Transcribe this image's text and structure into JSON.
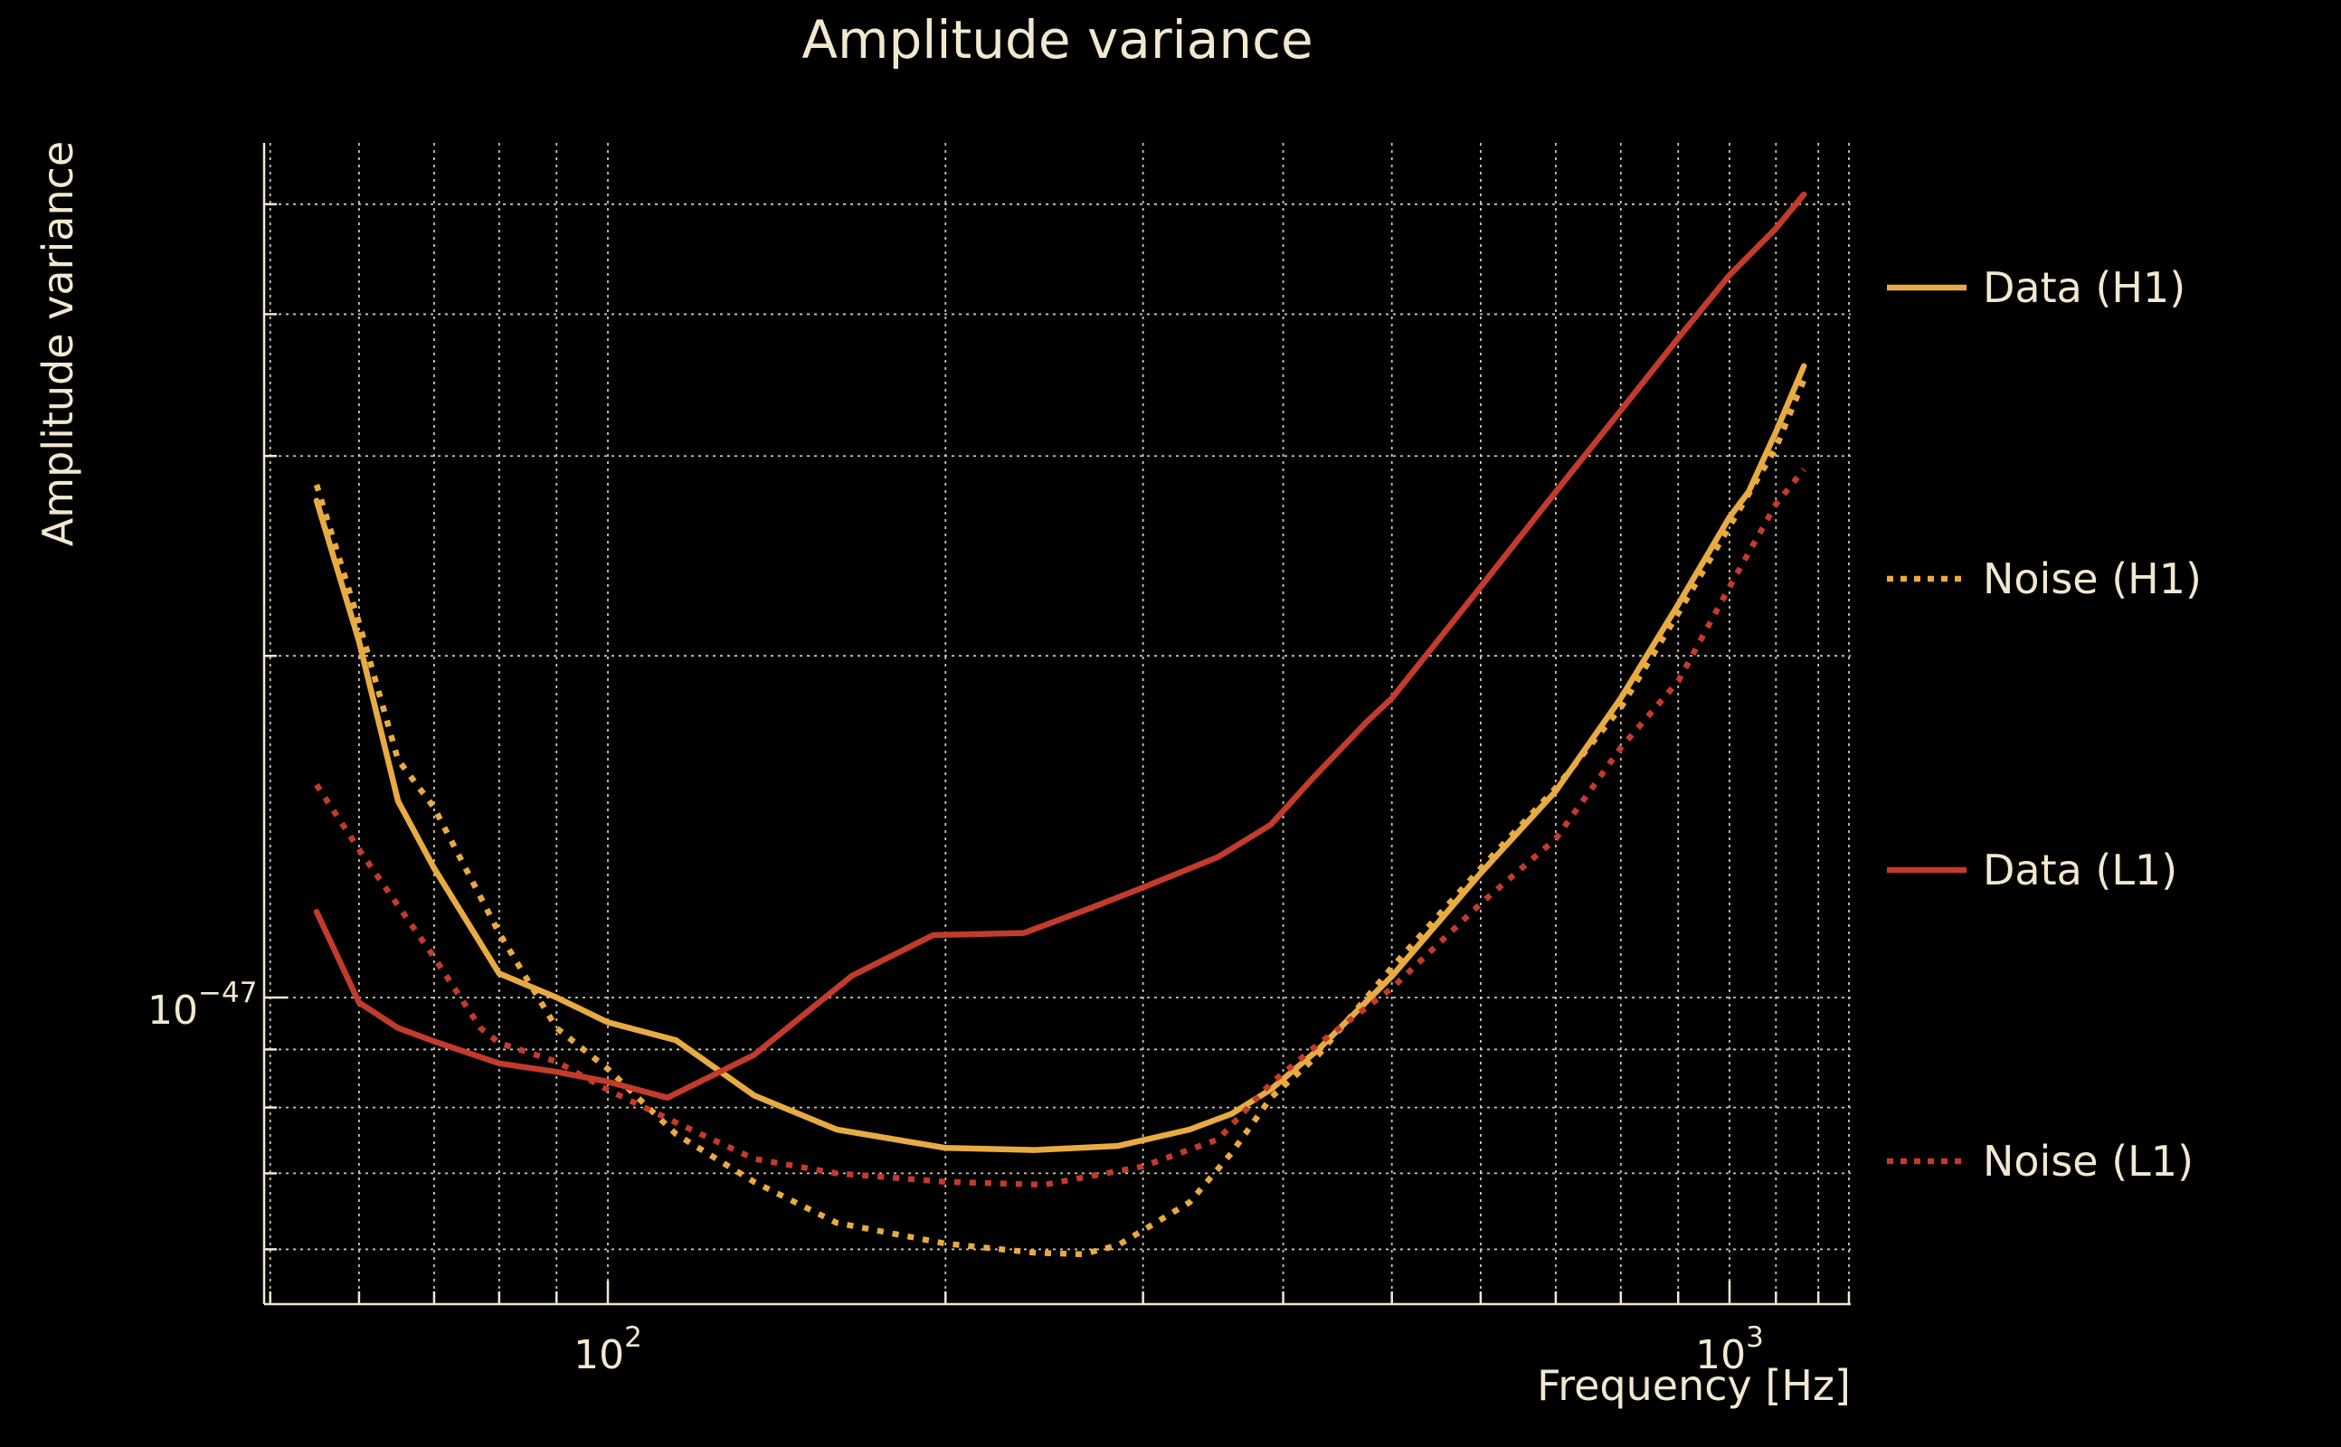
{
  "figure": {
    "title": "Amplitude variance",
    "xlabel": "Frequency [Hz]",
    "ylabel": "Amplitude variance",
    "xtick_labels": [
      {
        "base": "10",
        "exp": "2",
        "value_hz": 100
      },
      {
        "base": "10",
        "exp": "3",
        "value_hz": 1000
      }
    ],
    "ytick_labels": [
      {
        "base": "10",
        "exp": "−47",
        "value": 1e-47
      }
    ]
  },
  "colors": {
    "background": "#000000",
    "text": "#f2e8d0",
    "grid": "#d9d2bf",
    "spine": "#f2e8d0",
    "gold": "#e8ab42",
    "red": "#c23b2b"
  },
  "legend": {
    "position": "right",
    "entries": [
      {
        "label": "Data (H1)",
        "color": "#e8ab42",
        "linestyle": "solid"
      },
      {
        "label": "Noise (H1)",
        "color": "#e8ab42",
        "linestyle": "dotted"
      },
      {
        "label": "Data (L1)",
        "color": "#c23b2b",
        "linestyle": "solid"
      },
      {
        "label": "Noise (L1)",
        "color": "#c23b2b",
        "linestyle": "dotted"
      }
    ]
  },
  "chart_data": {
    "type": "line",
    "title": "Amplitude variance",
    "xlabel": "Frequency [Hz]",
    "ylabel": "Amplitude variance",
    "x_scale": "log",
    "y_scale": "log",
    "xlim_hz": [
      49.3,
      1300
    ],
    "ylim": [
      5.4e-48,
      5.7e-47
    ],
    "grid": true,
    "x_gridlines_hz": [
      50,
      60,
      70,
      80,
      90,
      100,
      200,
      300,
      400,
      500,
      600,
      700,
      800,
      900,
      1000,
      1100,
      1200,
      1300
    ],
    "y_gridlines_1e47": [
      5,
      4,
      3,
      2,
      1,
      0.9,
      0.8,
      0.7,
      0.6
    ],
    "x_major_ticks_hz": [
      100,
      1000
    ],
    "y_major_ticks_1e47": [
      1
    ],
    "units_note": "y values below are in units of 1e-47",
    "series": [
      {
        "name": "Data (H1)",
        "color": "#e8ab42",
        "linestyle": "solid",
        "points": [
          [
            55,
            2.74
          ],
          [
            60,
            2.06
          ],
          [
            65,
            1.49
          ],
          [
            70,
            1.3
          ],
          [
            80,
            1.05
          ],
          [
            90,
            1.0
          ],
          [
            100,
            0.951
          ],
          [
            115,
            0.917
          ],
          [
            135,
            0.82
          ],
          [
            160,
            0.765
          ],
          [
            200,
            0.737
          ],
          [
            240,
            0.734
          ],
          [
            285,
            0.74
          ],
          [
            330,
            0.765
          ],
          [
            360,
            0.79
          ],
          [
            390,
            0.83
          ],
          [
            430,
            0.9
          ],
          [
            500,
            1.044
          ],
          [
            600,
            1.287
          ],
          [
            700,
            1.52
          ],
          [
            800,
            1.835
          ],
          [
            900,
            2.22
          ],
          [
            1000,
            2.65
          ],
          [
            1040,
            2.79
          ],
          [
            1100,
            3.15
          ],
          [
            1165,
            3.6
          ]
        ]
      },
      {
        "name": "Noise (H1)",
        "color": "#e8ab42",
        "linestyle": "dotted",
        "points": [
          [
            55,
            2.83
          ],
          [
            60,
            2.14
          ],
          [
            65,
            1.62
          ],
          [
            70,
            1.47
          ],
          [
            80,
            1.14
          ],
          [
            90,
            0.94
          ],
          [
            100,
            0.865
          ],
          [
            115,
            0.758
          ],
          [
            135,
            0.688
          ],
          [
            160,
            0.633
          ],
          [
            200,
            0.607
          ],
          [
            240,
            0.596
          ],
          [
            265,
            0.594
          ],
          [
            285,
            0.605
          ],
          [
            330,
            0.66
          ],
          [
            360,
            0.73
          ],
          [
            390,
            0.816
          ],
          [
            430,
            0.89
          ],
          [
            500,
            1.063
          ],
          [
            600,
            1.3
          ],
          [
            700,
            1.53
          ],
          [
            800,
            1.8
          ],
          [
            900,
            2.18
          ],
          [
            1000,
            2.6
          ],
          [
            1100,
            3.05
          ],
          [
            1165,
            3.5
          ]
        ]
      },
      {
        "name": "Data (L1)",
        "color": "#c23b2b",
        "linestyle": "solid",
        "points": [
          [
            55,
            1.19
          ],
          [
            60,
            0.99
          ],
          [
            65,
            0.94
          ],
          [
            70,
            0.915
          ],
          [
            80,
            0.875
          ],
          [
            90,
            0.86
          ],
          [
            100,
            0.843
          ],
          [
            113,
            0.816
          ],
          [
            135,
            0.89
          ],
          [
            165,
            1.045
          ],
          [
            195,
            1.135
          ],
          [
            235,
            1.14
          ],
          [
            270,
            1.2
          ],
          [
            300,
            1.25
          ],
          [
            350,
            1.33
          ],
          [
            390,
            1.42
          ],
          [
            424,
            1.556
          ],
          [
            475,
            1.75
          ],
          [
            500,
            1.835
          ],
          [
            600,
            2.3
          ],
          [
            700,
            2.79
          ],
          [
            800,
            3.29
          ],
          [
            900,
            3.81
          ],
          [
            1000,
            4.33
          ],
          [
            1100,
            4.76
          ],
          [
            1165,
            5.1
          ]
        ]
      },
      {
        "name": "Noise (L1)",
        "color": "#c23b2b",
        "linestyle": "dotted",
        "points": [
          [
            55,
            1.54
          ],
          [
            60,
            1.35
          ],
          [
            70,
            1.085
          ],
          [
            77,
            0.94
          ],
          [
            80,
            0.912
          ],
          [
            90,
            0.878
          ],
          [
            100,
            0.829
          ],
          [
            115,
            0.776
          ],
          [
            135,
            0.721
          ],
          [
            160,
            0.7
          ],
          [
            200,
            0.688
          ],
          [
            245,
            0.684
          ],
          [
            300,
            0.71
          ],
          [
            350,
            0.75
          ],
          [
            390,
            0.84
          ],
          [
            430,
            0.91
          ],
          [
            500,
            1.019
          ],
          [
            600,
            1.21
          ],
          [
            700,
            1.38
          ],
          [
            800,
            1.66
          ],
          [
            900,
            1.9
          ],
          [
            1000,
            2.3
          ],
          [
            1100,
            2.72
          ],
          [
            1165,
            2.92
          ]
        ]
      }
    ]
  }
}
